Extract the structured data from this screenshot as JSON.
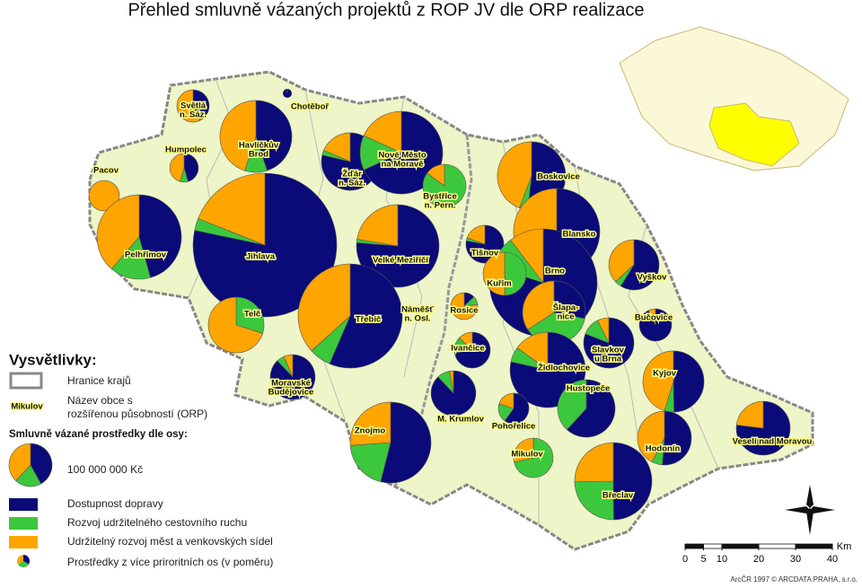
{
  "title": "Přehled smluvně vázaných projektů z ROP JV dle ORP realizace",
  "axes": [
    {
      "name": "Dostupnost dopravy",
      "color": "#0a0a78"
    },
    {
      "name": "Rozvoj udržitelného cestovního ruchu",
      "color": "#3cc83c"
    },
    {
      "name": "Udržitelný rozvoj měst a venkovských sídel",
      "color": "#ffa500"
    }
  ],
  "legend": {
    "title": "Vysvětlivky:",
    "border": "Hranice krajů",
    "sample_town": "Mikulov",
    "town_note": [
      "Název obce s",
      "rozšířenou působností (ORP)"
    ],
    "funds_title": "Smluvně vázané prostředky dle osy:",
    "reference": {
      "value": 100000000,
      "label": "100 000 000 Kč"
    },
    "mixed": "Prostředky z více priroritních os (v poměru)"
  },
  "towns": [
    {
      "name": [
        "Světlá",
        "n. Sáz."
      ],
      "values": [
        22000000,
        2000000,
        32000000
      ]
    },
    {
      "name": [
        "Chotěboř"
      ],
      "values": [
        4000000,
        0,
        0
      ]
    },
    {
      "name": [
        "Havlíčkův",
        "Brod"
      ],
      "values": [
        125000000,
        28000000,
        125000000
      ]
    },
    {
      "name": [
        "Humpolec"
      ],
      "values": [
        20000000,
        4000000,
        20000000
      ]
    },
    {
      "name": [
        "Pacov"
      ],
      "values": [
        0,
        0,
        50000000
      ]
    },
    {
      "name": [
        "Žďár",
        "n. Sáz."
      ],
      "values": [
        140000000,
        5000000,
        33000000
      ]
    },
    {
      "name": [
        "Nové Město",
        "na Moravě"
      ],
      "values": [
        250000000,
        50000000,
        67000000
      ]
    },
    {
      "name": [
        "Bystřice",
        "n. Pern."
      ],
      "values": [
        0,
        85000000,
        15000000
      ]
    },
    {
      "name": [
        "Pelhřimov"
      ],
      "values": [
        175000000,
        60000000,
        148000000
      ]
    },
    {
      "name": [
        "Jihlava"
      ],
      "values": [
        870000000,
        30000000,
        211000000
      ]
    },
    {
      "name": [
        "Velké Meziříčí"
      ],
      "values": [
        280000000,
        5000000,
        82000000
      ]
    },
    {
      "name": [
        "Boskovice"
      ],
      "values": [
        130000000,
        10000000,
        111000000
      ]
    },
    {
      "name": [
        "Blansko"
      ],
      "values": [
        230000000,
        0,
        170000000
      ]
    },
    {
      "name": [
        "Tišnov"
      ],
      "values": [
        60000000,
        2000000,
        15000000
      ]
    },
    {
      "name": [
        "Vyškov"
      ],
      "values": [
        80000000,
        6000000,
        50000000
      ]
    },
    {
      "name": [
        "Brno"
      ],
      "values": [
        500000000,
        60000000,
        65000000
      ]
    },
    {
      "name": [
        "Kuřim"
      ],
      "values": [
        0,
        50000000,
        50000000
      ]
    },
    {
      "name": [
        "Třebíč"
      ],
      "values": [
        330000000,
        40000000,
        214000000
      ]
    },
    {
      "name": [
        "Telč"
      ],
      "values": [
        0,
        50000000,
        117000000
      ]
    },
    {
      "name": [
        "Náměšť",
        "n. Osl."
      ]
    },
    {
      "name": [
        "Rosice"
      ],
      "values": [
        5000000,
        4000000,
        30000000
      ]
    },
    {
      "name": [
        "Šlapa-",
        "nice"
      ],
      "values": [
        60000000,
        80000000,
        73000000
      ]
    },
    {
      "name": [
        "Bučovice"
      ],
      "values": [
        52000000,
        0,
        4000000
      ]
    },
    {
      "name": [
        "Slavkov",
        "u Brna"
      ],
      "values": [
        110000000,
        16000000,
        10000000
      ]
    },
    {
      "name": [
        "Ivančice"
      ],
      "values": [
        50000000,
        10000000,
        9000000
      ]
    },
    {
      "name": [
        "Židlochovice"
      ],
      "values": [
        240000000,
        20000000,
        46000000
      ]
    },
    {
      "name": [
        "Moravské",
        "Budějovice"
      ],
      "values": [
        95000000,
        6000000,
        7000000
      ]
    },
    {
      "name": [
        "Kyjov"
      ],
      "values": [
        100000000,
        10000000,
        91000000
      ]
    },
    {
      "name": [
        "Hustopeče"
      ],
      "values": [
        110000000,
        68000000,
        0
      ]
    },
    {
      "name": [
        "M. Krumlov"
      ],
      "values": [
        95000000,
        10000000,
        3000000
      ]
    },
    {
      "name": [
        "Pohořelice"
      ],
      "values": [
        30000000,
        10000000,
        10000000
      ]
    },
    {
      "name": [
        "Hodonín"
      ],
      "values": [
        80000000,
        10000000,
        66000000
      ]
    },
    {
      "name": [
        "Veselí nad Moravou"
      ],
      "values": [
        120000000,
        0,
        36000000
      ]
    },
    {
      "name": [
        "Znojmo"
      ],
      "values": [
        190000000,
        70000000,
        92000000
      ]
    },
    {
      "name": [
        "Mikulov"
      ],
      "values": [
        0,
        60000000,
        24000000
      ]
    },
    {
      "name": [
        "Břeclav"
      ],
      "values": [
        160000000,
        80000000,
        81000000
      ]
    }
  ],
  "scale": {
    "ticks": [
      0,
      5,
      10,
      20,
      30,
      40
    ],
    "unit": "Km"
  },
  "credit": "ArcČR 1997 © ARCDATA PRAHA, s.r.o."
}
